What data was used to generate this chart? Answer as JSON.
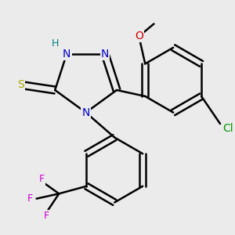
{
  "bg_color": "#ebebeb",
  "bond_color": "#000000",
  "bond_width": 1.8,
  "atom_colors": {
    "N": "#0000cc",
    "H": "#008080",
    "S": "#aaaa00",
    "O": "#cc0000",
    "Cl": "#009900",
    "F": "#cc00cc",
    "C": "#000000"
  },
  "font_size": 10,
  "font_size_small": 9
}
